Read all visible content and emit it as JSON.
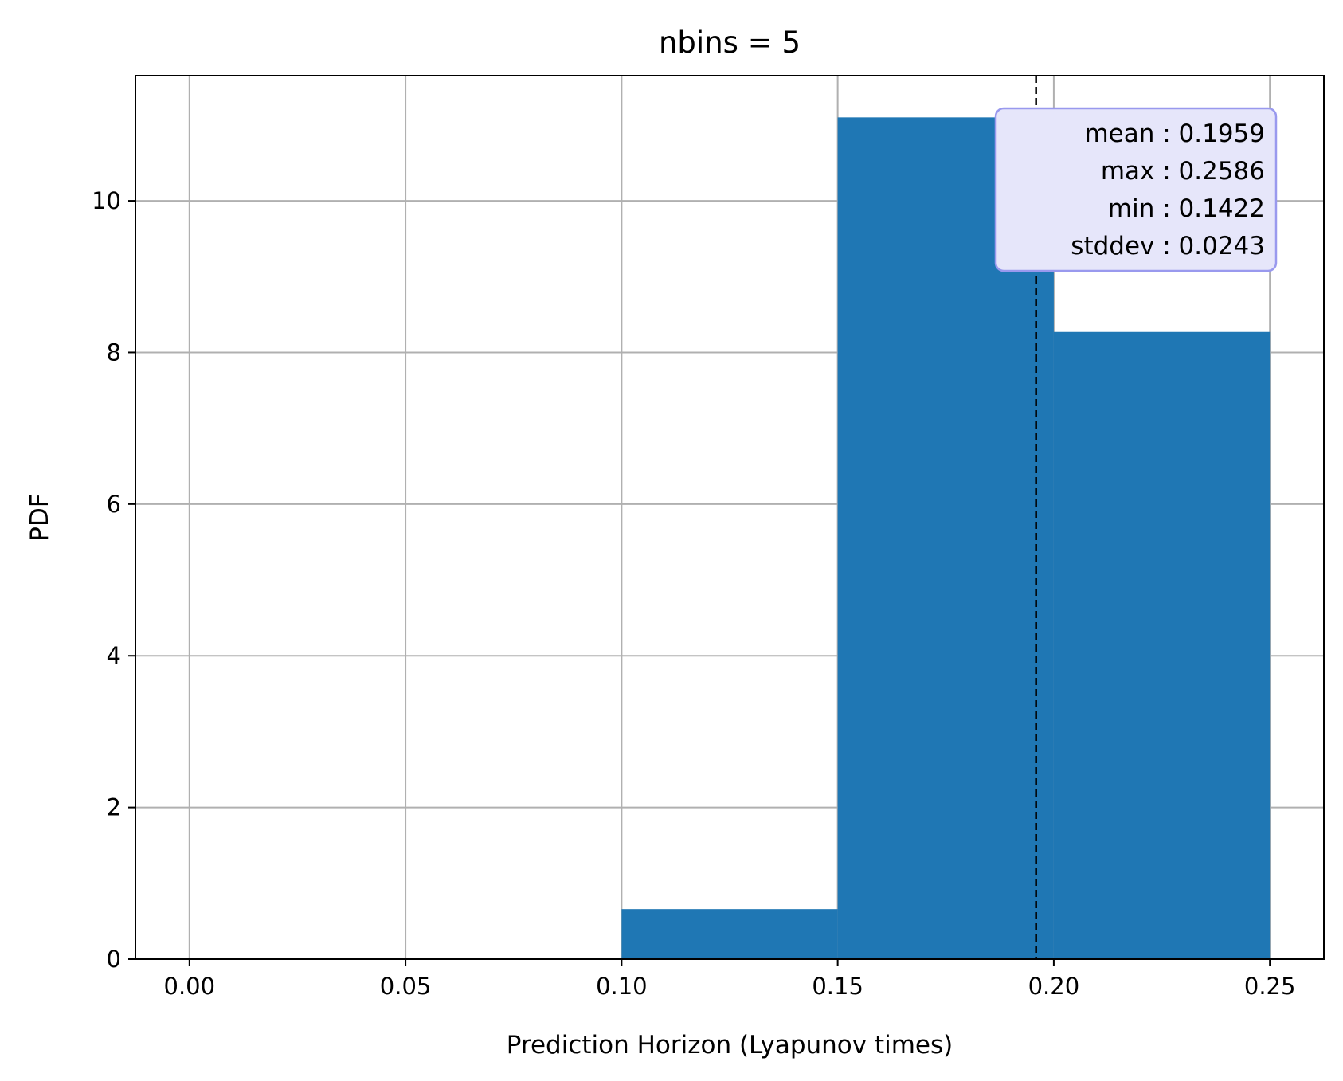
{
  "chart_data": {
    "type": "bar",
    "title": "nbins = 5",
    "xlabel": "Prediction Horizon (Lyapunov times)",
    "ylabel": "PDF",
    "xlim": [
      -0.0125,
      0.2625
    ],
    "ylim": [
      0,
      11.65
    ],
    "xticks": [
      0.0,
      0.05,
      0.1,
      0.15,
      0.2,
      0.25
    ],
    "xtick_labels": [
      "0.00",
      "0.05",
      "0.10",
      "0.15",
      "0.20",
      "0.25"
    ],
    "yticks": [
      0,
      2,
      4,
      6,
      8,
      10
    ],
    "ytick_labels": [
      "0",
      "2",
      "4",
      "6",
      "8",
      "10"
    ],
    "grid": true,
    "bar_color": "#1f77b4",
    "bins": [
      {
        "x0": 0.0,
        "x1": 0.05,
        "value": 0
      },
      {
        "x0": 0.05,
        "x1": 0.1,
        "value": 0
      },
      {
        "x0": 0.1,
        "x1": 0.15,
        "value": 0.66
      },
      {
        "x0": 0.15,
        "x1": 0.2,
        "value": 11.1
      },
      {
        "x0": 0.2,
        "x1": 0.25,
        "value": 8.27
      }
    ],
    "mean_line": {
      "x": 0.1959,
      "style": "dashed",
      "color": "#000000"
    },
    "stats_box": {
      "placement": "top-right",
      "lines": [
        "mean : 0.1959",
        "max : 0.2586",
        "min : 0.1422",
        "stddev : 0.0243"
      ],
      "background": "#e6e6fa",
      "border": "#9999ee"
    }
  }
}
